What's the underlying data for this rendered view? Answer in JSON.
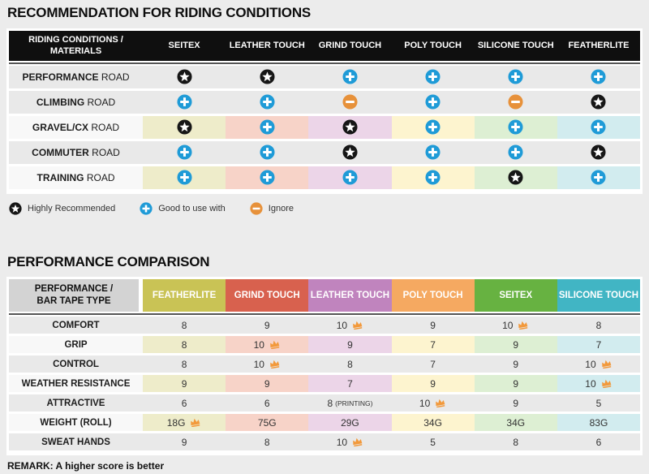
{
  "colors": {
    "header_black": "#0f0f0f",
    "header_gray": "#d3d3d3",
    "row_gray": "#e9e9e9",
    "row_light": "#f8f8f8",
    "divider": "#555555"
  },
  "icon_colors": {
    "star": "#161616",
    "plus": "#1f9bd7",
    "minus": "#e7913a",
    "crown": "#f2993b"
  },
  "section1": {
    "title": "RECOMMENDATION FOR RIDING CONDITIONS",
    "header_label_line1": "RIDING CONDITIONS /",
    "header_label_line2": "MATERIALS",
    "columns": [
      "SEITEX",
      "LEATHER TOUCH",
      "GRIND TOUCH",
      "POLY TOUCH",
      "SILICONE TOUCH",
      "FEATHERLITE"
    ],
    "column_tints": [
      "#eeecca",
      "#f7d3c8",
      "#ecd5e8",
      "#fdf4cf",
      "#ddefd3",
      "#d2ecef"
    ],
    "rows": [
      {
        "name": "PERFORMANCE",
        "suffix": "ROAD",
        "tinted": false,
        "icons": [
          "star",
          "star",
          "plus",
          "plus",
          "plus",
          "plus"
        ]
      },
      {
        "name": "CLIMBING",
        "suffix": "ROAD",
        "tinted": false,
        "icons": [
          "plus",
          "plus",
          "minus",
          "plus",
          "minus",
          "star"
        ]
      },
      {
        "name": "GRAVEL/CX",
        "suffix": "ROAD",
        "tinted": true,
        "icons": [
          "star",
          "plus",
          "star",
          "plus",
          "plus",
          "plus"
        ]
      },
      {
        "name": "COMMUTER",
        "suffix": "ROAD",
        "tinted": false,
        "icons": [
          "plus",
          "plus",
          "star",
          "plus",
          "plus",
          "star"
        ]
      },
      {
        "name": "TRAINING",
        "suffix": "ROAD",
        "tinted": true,
        "icons": [
          "plus",
          "plus",
          "plus",
          "plus",
          "star",
          "plus"
        ]
      }
    ]
  },
  "legend": {
    "items": [
      {
        "icon": "star",
        "label": "Highly Recommended"
      },
      {
        "icon": "plus",
        "label": "Good to use with"
      },
      {
        "icon": "minus",
        "label": "Ignore"
      }
    ]
  },
  "section2": {
    "title": "PERFORMANCE COMPARISON",
    "header_label_line1": "PERFORMANCE /",
    "header_label_line2": "BAR TAPE TYPE",
    "columns": [
      {
        "label": "FEATHERLITE",
        "color": "#c9c355",
        "tint": "#eeecca"
      },
      {
        "label": "GRIND TOUCH",
        "color": "#d8614e",
        "tint": "#f7d3c8"
      },
      {
        "label": "LEATHER TOUCH",
        "color": "#c084be",
        "tint": "#ecd5e8"
      },
      {
        "label": "POLY TOUCH",
        "color": "#f5a961",
        "tint": "#fdf4cf"
      },
      {
        "label": "SEITEX",
        "color": "#67b241",
        "tint": "#ddefd3"
      },
      {
        "label": "SILICONE TOUCH",
        "color": "#41b5c4",
        "tint": "#d2ecef"
      }
    ],
    "rows": [
      {
        "label": "COMFORT",
        "tinted": false,
        "values": [
          {
            "text": "8"
          },
          {
            "text": "9"
          },
          {
            "text": "10",
            "crown": true
          },
          {
            "text": "9"
          },
          {
            "text": "10",
            "crown": true
          },
          {
            "text": "8"
          }
        ]
      },
      {
        "label": "GRIP",
        "tinted": true,
        "values": [
          {
            "text": "8"
          },
          {
            "text": "10",
            "crown": true
          },
          {
            "text": "9"
          },
          {
            "text": "7"
          },
          {
            "text": "9"
          },
          {
            "text": "7"
          }
        ]
      },
      {
        "label": "CONTROL",
        "tinted": false,
        "values": [
          {
            "text": "8"
          },
          {
            "text": "10",
            "crown": true
          },
          {
            "text": "8"
          },
          {
            "text": "7"
          },
          {
            "text": "9"
          },
          {
            "text": "10",
            "crown": true
          }
        ]
      },
      {
        "label": "WEATHER RESISTANCE",
        "tinted": true,
        "values": [
          {
            "text": "9"
          },
          {
            "text": "9"
          },
          {
            "text": "7"
          },
          {
            "text": "9"
          },
          {
            "text": "9"
          },
          {
            "text": "10",
            "crown": true
          }
        ]
      },
      {
        "label": "ATTRACTIVE",
        "tinted": false,
        "values": [
          {
            "text": "6"
          },
          {
            "text": "6"
          },
          {
            "text": "8",
            "small": "(PRINTING)"
          },
          {
            "text": "10",
            "crown": true
          },
          {
            "text": "9"
          },
          {
            "text": "5"
          }
        ]
      },
      {
        "label": "WEIGHT (ROLL)",
        "tinted": true,
        "values": [
          {
            "text": "18G",
            "crown": true
          },
          {
            "text": "75G"
          },
          {
            "text": "29G"
          },
          {
            "text": "34G"
          },
          {
            "text": "34G"
          },
          {
            "text": "83G"
          }
        ]
      },
      {
        "label": "SWEAT HANDS",
        "tinted": false,
        "values": [
          {
            "text": "9"
          },
          {
            "text": "8"
          },
          {
            "text": "10",
            "crown": true
          },
          {
            "text": "5"
          },
          {
            "text": "8"
          },
          {
            "text": "6"
          }
        ]
      }
    ],
    "remark": "REMARK: A higher score is better"
  },
  "chart_data": [
    {
      "type": "table",
      "title": "RECOMMENDATION FOR RIDING CONDITIONS",
      "columns": [
        "SEITEX",
        "LEATHER TOUCH",
        "GRIND TOUCH",
        "POLY TOUCH",
        "SILICONE TOUCH",
        "FEATHERLITE"
      ],
      "rows": [
        {
          "label": "PERFORMANCE ROAD",
          "values": [
            "highly_recommended",
            "highly_recommended",
            "good_to_use_with",
            "good_to_use_with",
            "good_to_use_with",
            "good_to_use_with"
          ]
        },
        {
          "label": "CLIMBING ROAD",
          "values": [
            "good_to_use_with",
            "good_to_use_with",
            "ignore",
            "good_to_use_with",
            "ignore",
            "highly_recommended"
          ]
        },
        {
          "label": "GRAVEL/CX ROAD",
          "values": [
            "highly_recommended",
            "good_to_use_with",
            "highly_recommended",
            "good_to_use_with",
            "good_to_use_with",
            "good_to_use_with"
          ]
        },
        {
          "label": "COMMUTER ROAD",
          "values": [
            "good_to_use_with",
            "good_to_use_with",
            "highly_recommended",
            "good_to_use_with",
            "good_to_use_with",
            "highly_recommended"
          ]
        },
        {
          "label": "TRAINING ROAD",
          "values": [
            "good_to_use_with",
            "good_to_use_with",
            "good_to_use_with",
            "good_to_use_with",
            "highly_recommended",
            "good_to_use_with"
          ]
        }
      ],
      "legend": [
        "Highly Recommended",
        "Good to use with",
        "Ignore"
      ]
    },
    {
      "type": "table",
      "title": "PERFORMANCE COMPARISON",
      "columns": [
        "FEATHERLITE",
        "GRIND TOUCH",
        "LEATHER TOUCH",
        "POLY TOUCH",
        "SEITEX",
        "SILICONE TOUCH"
      ],
      "rows": [
        {
          "label": "COMFORT",
          "values": [
            "8",
            "9",
            "10 (best)",
            "9",
            "10 (best)",
            "8"
          ]
        },
        {
          "label": "GRIP",
          "values": [
            "8",
            "10 (best)",
            "9",
            "7",
            "9",
            "7"
          ]
        },
        {
          "label": "CONTROL",
          "values": [
            "8",
            "10 (best)",
            "8",
            "7",
            "9",
            "10 (best)"
          ]
        },
        {
          "label": "WEATHER RESISTANCE",
          "values": [
            "9",
            "9",
            "7",
            "9",
            "9",
            "10 (best)"
          ]
        },
        {
          "label": "ATTRACTIVE",
          "values": [
            "6",
            "6",
            "8 (PRINTING)",
            "10 (best)",
            "9",
            "5"
          ]
        },
        {
          "label": "WEIGHT (ROLL)",
          "values": [
            "18G (best)",
            "75G",
            "29G",
            "34G",
            "34G",
            "83G"
          ]
        },
        {
          "label": "SWEAT HANDS",
          "values": [
            "9",
            "8",
            "10 (best)",
            "5",
            "8",
            "6"
          ]
        }
      ],
      "remark": "REMARK: A higher score is better"
    }
  ]
}
